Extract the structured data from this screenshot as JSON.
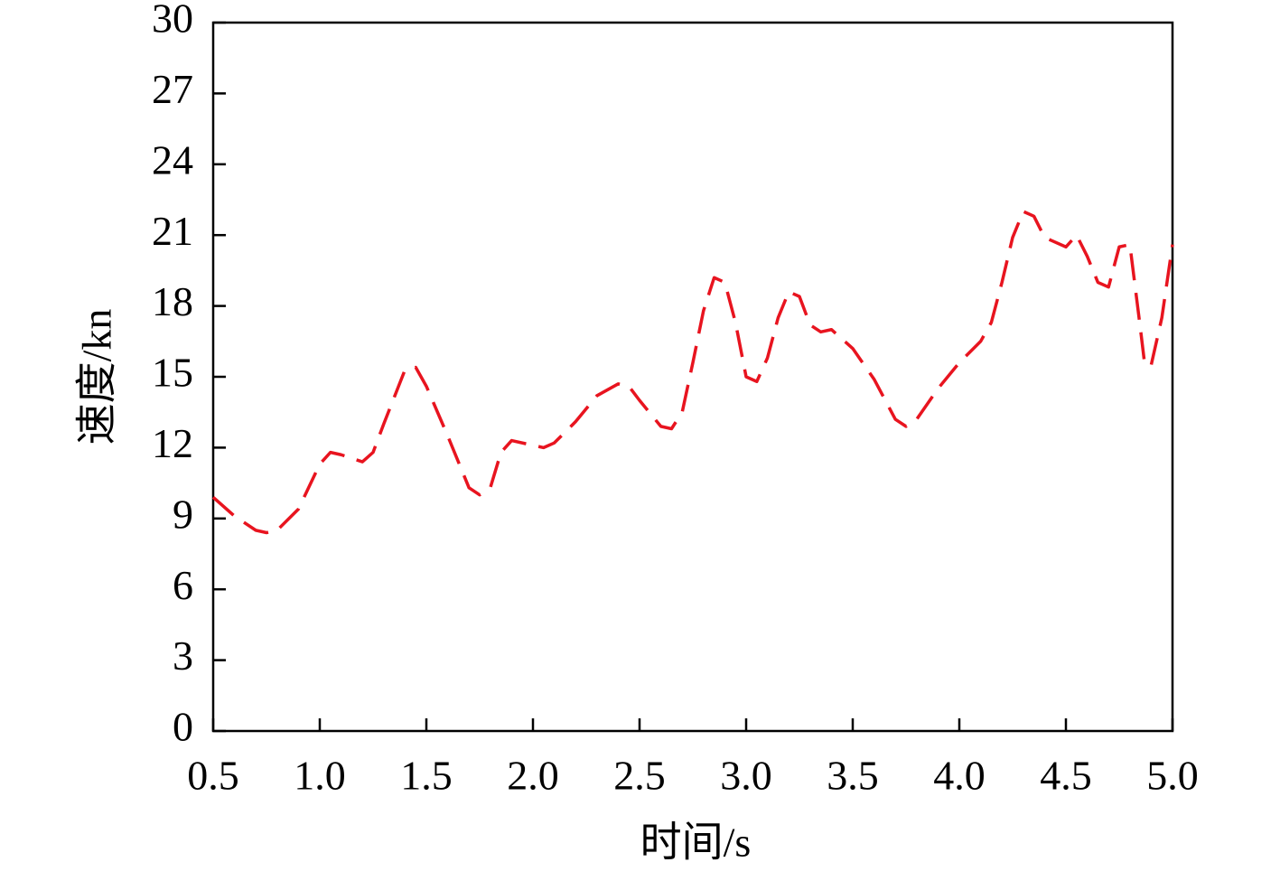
{
  "chart_data": {
    "type": "line",
    "xlabel": "时间/s",
    "ylabel": "速度/kn",
    "x": [
      0.5,
      0.6,
      0.7,
      0.75,
      0.8,
      0.9,
      1.0,
      1.05,
      1.1,
      1.2,
      1.25,
      1.3,
      1.4,
      1.45,
      1.5,
      1.6,
      1.7,
      1.75,
      1.8,
      1.85,
      1.9,
      2.0,
      2.05,
      2.1,
      2.2,
      2.3,
      2.4,
      2.45,
      2.5,
      2.6,
      2.65,
      2.7,
      2.75,
      2.8,
      2.85,
      2.9,
      2.95,
      3.0,
      3.05,
      3.1,
      3.15,
      3.2,
      3.25,
      3.3,
      3.35,
      3.4,
      3.5,
      3.6,
      3.7,
      3.75,
      3.8,
      3.9,
      4.0,
      4.1,
      4.15,
      4.2,
      4.25,
      4.3,
      4.35,
      4.4,
      4.5,
      4.55,
      4.6,
      4.65,
      4.7,
      4.75,
      4.8,
      4.85,
      4.87,
      4.9,
      4.95,
      5.0
    ],
    "series": [
      {
        "color": "#e8141f",
        "values": [
          9.9,
          9.1,
          8.5,
          8.4,
          8.5,
          9.4,
          11.3,
          11.8,
          11.7,
          11.4,
          11.8,
          13.0,
          15.3,
          15.4,
          14.6,
          12.5,
          10.3,
          10.0,
          10.3,
          11.8,
          12.3,
          12.1,
          12.0,
          12.2,
          13.1,
          14.2,
          14.7,
          14.6,
          14.0,
          12.9,
          12.8,
          13.5,
          15.6,
          17.8,
          19.2,
          19.0,
          17.3,
          15.0,
          14.8,
          15.8,
          17.5,
          18.6,
          18.4,
          17.2,
          16.9,
          17.0,
          16.2,
          14.9,
          13.2,
          12.9,
          13.2,
          14.5,
          15.6,
          16.5,
          17.3,
          19.0,
          20.9,
          22.0,
          21.8,
          20.9,
          20.5,
          21.0,
          20.1,
          19.0,
          18.8,
          20.5,
          20.6,
          17.0,
          15.5,
          15.5,
          17.5,
          20.6
        ]
      }
    ],
    "xlim": [
      0.5,
      5.0
    ],
    "xticks": [
      0.5,
      {
        "value": 1,
        "label": "1.0"
      },
      1.5,
      {
        "value": 2,
        "label": "2.0"
      },
      2.5,
      {
        "value": 3,
        "label": "3.0"
      },
      3.5,
      {
        "value": 4,
        "label": "4.0"
      },
      4.5,
      {
        "value": 5,
        "label": "5.0"
      }
    ],
    "ylim": [
      0,
      30
    ],
    "yticks": [
      0,
      3,
      6,
      9,
      12,
      15,
      18,
      21,
      24,
      27,
      30
    ],
    "dashed": true
  }
}
